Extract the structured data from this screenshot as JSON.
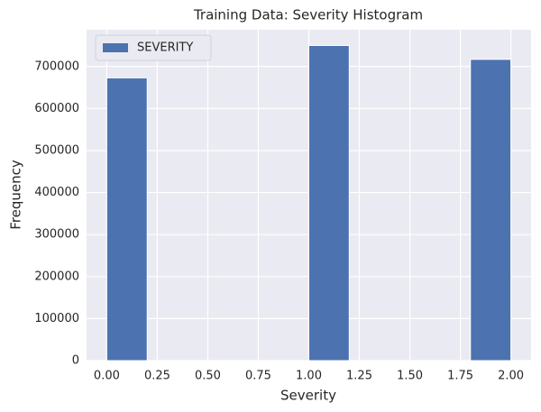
{
  "chart_data": {
    "type": "histogram",
    "title": "Training Data: Severity Histogram",
    "x_label": "Severity",
    "y_label": "Frequency",
    "bins": [
      0,
      0.2,
      0.4,
      0.6,
      0.8,
      1,
      1.2,
      1.4,
      1.6,
      1.8,
      2
    ],
    "series": [
      {
        "name": "SEVERITY",
        "color": "#4c72b0",
        "values": [
          673000,
          0,
          0,
          0,
          0,
          750000,
          0,
          0,
          0,
          717000
        ]
      }
    ],
    "xlim": [
      -0.1,
      2.1
    ],
    "xticks": [
      {
        "value": 0,
        "label": "0.00"
      },
      {
        "value": 0.25,
        "label": "0.25"
      },
      {
        "value": 0.5,
        "label": "0.50"
      },
      {
        "value": 0.75,
        "label": "0.75"
      },
      {
        "value": 1,
        "label": "1.00"
      },
      {
        "value": 1.25,
        "label": "1.25"
      },
      {
        "value": 1.5,
        "label": "1.50"
      },
      {
        "value": 1.75,
        "label": "1.75"
      },
      {
        "value": 2,
        "label": "2.00"
      }
    ],
    "ylim": [
      0,
      787500
    ],
    "yticks": [
      0,
      100000,
      200000,
      300000,
      400000,
      500000,
      600000,
      700000
    ],
    "grid": true,
    "legend_position": "upper left"
  }
}
